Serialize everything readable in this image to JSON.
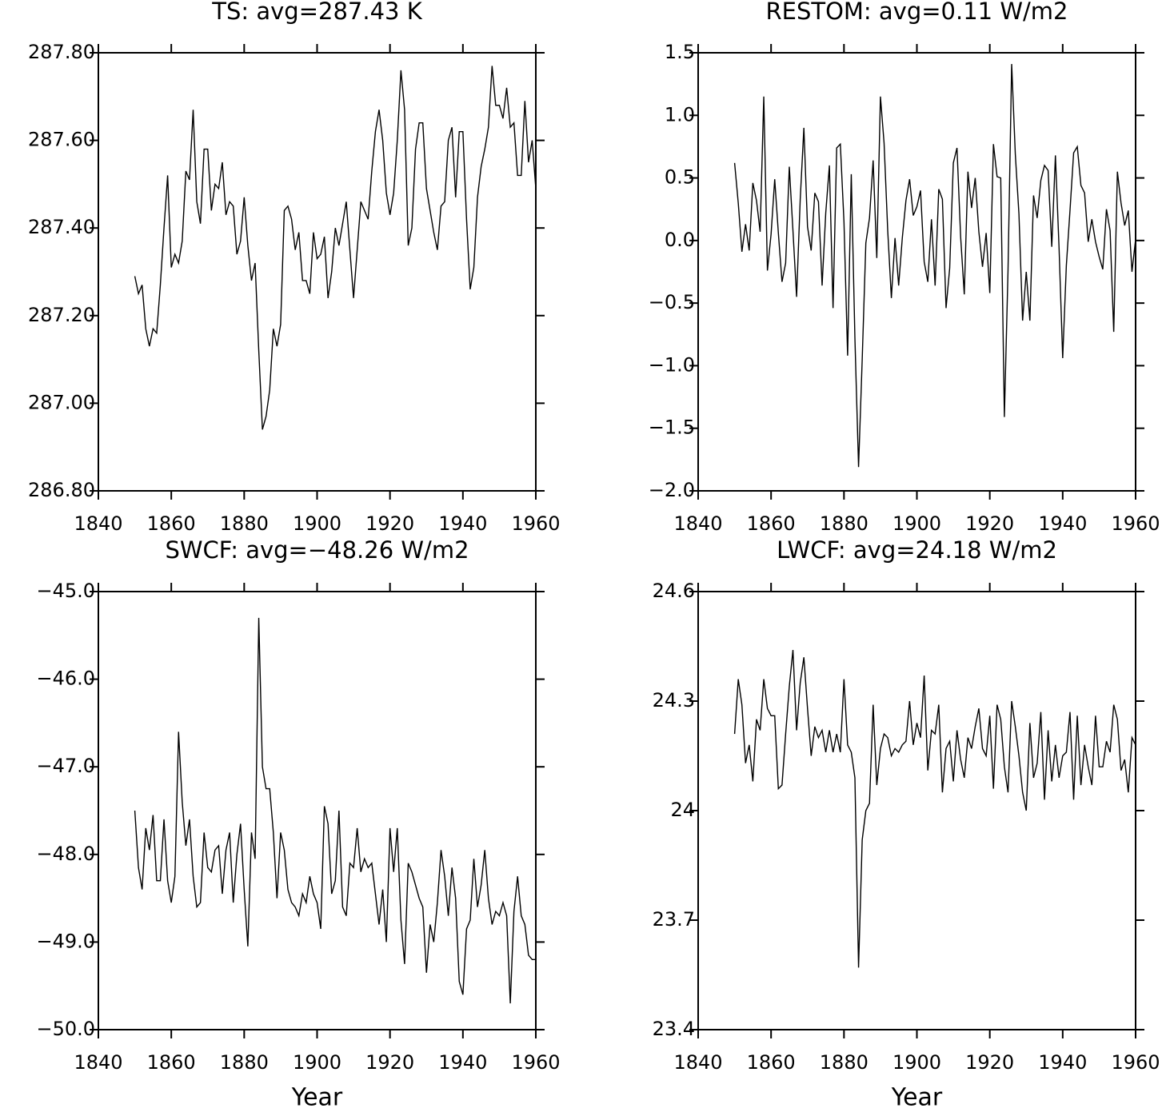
{
  "chart_data": [
    {
      "type": "line",
      "title": "TS: avg=287.43 K",
      "color": "#000000",
      "x": [
        1850,
        1851,
        1852,
        1853,
        1854,
        1855,
        1856,
        1857,
        1858,
        1859,
        1860,
        1861,
        1862,
        1863,
        1864,
        1865,
        1866,
        1867,
        1868,
        1869,
        1870,
        1871,
        1872,
        1873,
        1874,
        1875,
        1876,
        1877,
        1878,
        1879,
        1880,
        1881,
        1882,
        1883,
        1884,
        1885,
        1886,
        1887,
        1888,
        1889,
        1890,
        1891,
        1892,
        1893,
        1894,
        1895,
        1896,
        1897,
        1898,
        1899,
        1900,
        1901,
        1902,
        1903,
        1904,
        1905,
        1906,
        1907,
        1908,
        1909,
        1910,
        1911,
        1912,
        1913,
        1914,
        1915,
        1916,
        1917,
        1918,
        1919,
        1920,
        1921,
        1922,
        1923,
        1924,
        1925,
        1926,
        1927,
        1928,
        1929,
        1930,
        1931,
        1932,
        1933,
        1934,
        1935,
        1936,
        1937,
        1938,
        1939,
        1940,
        1941,
        1942,
        1943,
        1944,
        1945,
        1946,
        1947,
        1948,
        1949,
        1950,
        1951,
        1952,
        1953,
        1954,
        1955,
        1956,
        1957,
        1958,
        1959,
        1960
      ],
      "values": [
        287.29,
        287.25,
        287.27,
        287.17,
        287.13,
        287.17,
        287.16,
        287.27,
        287.4,
        287.52,
        287.31,
        287.34,
        287.32,
        287.37,
        287.53,
        287.51,
        287.67,
        287.46,
        287.41,
        287.58,
        287.58,
        287.44,
        287.5,
        287.49,
        287.55,
        287.43,
        287.46,
        287.45,
        287.34,
        287.37,
        287.47,
        287.36,
        287.28,
        287.32,
        287.12,
        286.94,
        286.97,
        287.03,
        287.17,
        287.13,
        287.18,
        287.44,
        287.45,
        287.42,
        287.35,
        287.39,
        287.28,
        287.28,
        287.25,
        287.39,
        287.33,
        287.34,
        287.38,
        287.24,
        287.3,
        287.4,
        287.36,
        287.41,
        287.46,
        287.35,
        287.24,
        287.35,
        287.46,
        287.44,
        287.42,
        287.53,
        287.62,
        287.67,
        287.6,
        287.48,
        287.43,
        287.48,
        287.6,
        287.76,
        287.67,
        287.36,
        287.4,
        287.58,
        287.64,
        287.64,
        287.49,
        287.44,
        287.39,
        287.35,
        287.45,
        287.46,
        287.6,
        287.63,
        287.47,
        287.62,
        287.62,
        287.42,
        287.26,
        287.31,
        287.47,
        287.54,
        287.58,
        287.63,
        287.77,
        287.68,
        287.68,
        287.65,
        287.72,
        287.63,
        287.64,
        287.52,
        287.52,
        287.69,
        287.55,
        287.6,
        287.49
      ],
      "xlim": [
        1840,
        1960
      ],
      "xticks": [
        1840,
        1860,
        1880,
        1900,
        1920,
        1940,
        1960
      ],
      "ylim": [
        286.8,
        287.8
      ],
      "yticks": [
        {
          "value": 286.8,
          "label": "286.80"
        },
        {
          "value": 287.0,
          "label": "287.00"
        },
        {
          "value": 287.2,
          "label": "287.20"
        },
        {
          "value": 287.4,
          "label": "287.40"
        },
        {
          "value": 287.6,
          "label": "287.60"
        },
        {
          "value": 287.8,
          "label": "287.80"
        }
      ]
    },
    {
      "type": "line",
      "title": "RESTOM: avg=0.11 W/m2",
      "color": "#000000",
      "x": [
        1850,
        1851,
        1852,
        1853,
        1854,
        1855,
        1856,
        1857,
        1858,
        1859,
        1860,
        1861,
        1862,
        1863,
        1864,
        1865,
        1866,
        1867,
        1868,
        1869,
        1870,
        1871,
        1872,
        1873,
        1874,
        1875,
        1876,
        1877,
        1878,
        1879,
        1880,
        1881,
        1882,
        1883,
        1884,
        1885,
        1886,
        1887,
        1888,
        1889,
        1890,
        1891,
        1892,
        1893,
        1894,
        1895,
        1896,
        1897,
        1898,
        1899,
        1900,
        1901,
        1902,
        1903,
        1904,
        1905,
        1906,
        1907,
        1908,
        1909,
        1910,
        1911,
        1912,
        1913,
        1914,
        1915,
        1916,
        1917,
        1918,
        1919,
        1920,
        1921,
        1922,
        1923,
        1924,
        1925,
        1926,
        1927,
        1928,
        1929,
        1930,
        1931,
        1932,
        1933,
        1934,
        1935,
        1936,
        1937,
        1938,
        1939,
        1940,
        1941,
        1942,
        1943,
        1944,
        1945,
        1946,
        1947,
        1948,
        1949,
        1950,
        1951,
        1952,
        1953,
        1954,
        1955,
        1956,
        1957,
        1958,
        1959,
        1960
      ],
      "values": [
        0.62,
        0.3,
        -0.09,
        0.13,
        -0.08,
        0.46,
        0.32,
        0.07,
        1.15,
        -0.24,
        0.05,
        0.49,
        0.06,
        -0.33,
        -0.18,
        0.59,
        0.08,
        -0.45,
        0.33,
        0.9,
        0.11,
        -0.08,
        0.38,
        0.31,
        -0.36,
        0.22,
        0.6,
        -0.54,
        0.74,
        0.77,
        0.15,
        -0.92,
        0.53,
        -0.78,
        -1.81,
        -0.95,
        -0.02,
        0.18,
        0.64,
        -0.14,
        1.15,
        0.78,
        0.08,
        -0.46,
        0.02,
        -0.36,
        0.02,
        0.32,
        0.49,
        0.2,
        0.27,
        0.4,
        -0.17,
        -0.33,
        0.17,
        -0.36,
        0.41,
        0.33,
        -0.54,
        -0.22,
        0.62,
        0.74,
        0.03,
        -0.43,
        0.55,
        0.26,
        0.5,
        0.07,
        -0.21,
        0.06,
        -0.42,
        0.77,
        0.51,
        0.5,
        -1.41,
        -0.24,
        1.41,
        0.69,
        0.21,
        -0.64,
        -0.25,
        -0.64,
        0.36,
        0.18,
        0.48,
        0.6,
        0.56,
        -0.05,
        0.68,
        -0.06,
        -0.94,
        -0.2,
        0.24,
        0.7,
        0.75,
        0.44,
        0.38,
        -0.01,
        0.17,
        -0.01,
        -0.13,
        -0.23,
        0.25,
        0.08,
        -0.73,
        0.55,
        0.3,
        0.12,
        0.24,
        -0.25,
        0.01
      ],
      "xlim": [
        1840,
        1960
      ],
      "xticks": [
        1840,
        1860,
        1880,
        1900,
        1920,
        1940,
        1960
      ],
      "ylim": [
        -2.0,
        1.5
      ],
      "yticks": [
        {
          "value": -2.0,
          "label": "−2.0"
        },
        {
          "value": -1.5,
          "label": "−1.5"
        },
        {
          "value": -1.0,
          "label": "−1.0"
        },
        {
          "value": -0.5,
          "label": "−0.5"
        },
        {
          "value": 0.0,
          "label": "0.0"
        },
        {
          "value": 0.5,
          "label": "0.5"
        },
        {
          "value": 1.0,
          "label": "1.0"
        },
        1.5
      ]
    },
    {
      "type": "line",
      "title": "SWCF: avg=−48.26 W/m2",
      "x_label": "Year",
      "color": "#000000",
      "x": [
        1850,
        1851,
        1852,
        1853,
        1854,
        1855,
        1856,
        1857,
        1858,
        1859,
        1860,
        1861,
        1862,
        1863,
        1864,
        1865,
        1866,
        1867,
        1868,
        1869,
        1870,
        1871,
        1872,
        1873,
        1874,
        1875,
        1876,
        1877,
        1878,
        1879,
        1880,
        1881,
        1882,
        1883,
        1884,
        1885,
        1886,
        1887,
        1888,
        1889,
        1890,
        1891,
        1892,
        1893,
        1894,
        1895,
        1896,
        1897,
        1898,
        1899,
        1900,
        1901,
        1902,
        1903,
        1904,
        1905,
        1906,
        1907,
        1908,
        1909,
        1910,
        1911,
        1912,
        1913,
        1914,
        1915,
        1916,
        1917,
        1918,
        1919,
        1920,
        1921,
        1922,
        1923,
        1924,
        1925,
        1926,
        1927,
        1928,
        1929,
        1930,
        1931,
        1932,
        1933,
        1934,
        1935,
        1936,
        1937,
        1938,
        1939,
        1940,
        1941,
        1942,
        1943,
        1944,
        1945,
        1946,
        1947,
        1948,
        1949,
        1950,
        1951,
        1952,
        1953,
        1954,
        1955,
        1956,
        1957,
        1958,
        1959,
        1960
      ],
      "values": [
        -47.5,
        -48.15,
        -48.4,
        -47.7,
        -47.95,
        -47.55,
        -48.3,
        -48.3,
        -47.6,
        -48.3,
        -48.55,
        -48.25,
        -46.6,
        -47.4,
        -47.9,
        -47.6,
        -48.25,
        -48.6,
        -48.55,
        -47.75,
        -48.15,
        -48.2,
        -47.95,
        -47.9,
        -48.45,
        -47.95,
        -47.75,
        -48.55,
        -48.0,
        -47.65,
        -48.4,
        -49.05,
        -47.75,
        -48.05,
        -45.3,
        -47.0,
        -47.25,
        -47.25,
        -47.75,
        -48.5,
        -47.75,
        -47.95,
        -48.4,
        -48.55,
        -48.6,
        -48.7,
        -48.45,
        -48.55,
        -48.25,
        -48.45,
        -48.55,
        -48.85,
        -47.45,
        -47.65,
        -48.45,
        -48.3,
        -47.5,
        -48.6,
        -48.7,
        -48.1,
        -48.15,
        -47.7,
        -48.2,
        -48.05,
        -48.15,
        -48.1,
        -48.45,
        -48.8,
        -48.4,
        -49.0,
        -47.7,
        -48.2,
        -47.7,
        -48.75,
        -49.25,
        -48.1,
        -48.2,
        -48.35,
        -48.5,
        -48.6,
        -49.35,
        -48.8,
        -49.0,
        -48.55,
        -47.95,
        -48.25,
        -48.7,
        -48.15,
        -48.5,
        -49.45,
        -49.6,
        -48.85,
        -48.75,
        -48.05,
        -48.6,
        -48.35,
        -47.95,
        -48.5,
        -48.8,
        -48.65,
        -48.7,
        -48.55,
        -48.7,
        -49.7,
        -48.65,
        -48.25,
        -48.7,
        -48.8,
        -49.15,
        -49.2,
        -49.2
      ],
      "xlim": [
        1840,
        1960
      ],
      "xticks": [
        1840,
        1860,
        1880,
        1900,
        1920,
        1940,
        1960
      ],
      "ylim": [
        -50.0,
        -45.0
      ],
      "yticks": [
        {
          "value": -50.0,
          "label": "−50.0"
        },
        {
          "value": -49.0,
          "label": "−49.0"
        },
        {
          "value": -48.0,
          "label": "−48.0"
        },
        {
          "value": -47.0,
          "label": "−47.0"
        },
        {
          "value": -46.0,
          "label": "−46.0"
        },
        {
          "value": -45.0,
          "label": "−45.0"
        }
      ]
    },
    {
      "type": "line",
      "title": "LWCF: avg=24.18 W/m2",
      "x_label": "Year",
      "color": "#000000",
      "x": [
        1850,
        1851,
        1852,
        1853,
        1854,
        1855,
        1856,
        1857,
        1858,
        1859,
        1860,
        1861,
        1862,
        1863,
        1864,
        1865,
        1866,
        1867,
        1868,
        1869,
        1870,
        1871,
        1872,
        1873,
        1874,
        1875,
        1876,
        1877,
        1878,
        1879,
        1880,
        1881,
        1882,
        1883,
        1884,
        1885,
        1886,
        1887,
        1888,
        1889,
        1890,
        1891,
        1892,
        1893,
        1894,
        1895,
        1896,
        1897,
        1898,
        1899,
        1900,
        1901,
        1902,
        1903,
        1904,
        1905,
        1906,
        1907,
        1908,
        1909,
        1910,
        1911,
        1912,
        1913,
        1914,
        1915,
        1916,
        1917,
        1918,
        1919,
        1920,
        1921,
        1922,
        1923,
        1924,
        1925,
        1926,
        1927,
        1928,
        1929,
        1930,
        1931,
        1932,
        1933,
        1934,
        1935,
        1936,
        1937,
        1938,
        1939,
        1940,
        1941,
        1942,
        1943,
        1944,
        1945,
        1946,
        1947,
        1948,
        1949,
        1950,
        1951,
        1952,
        1953,
        1954,
        1955,
        1956,
        1957,
        1958,
        1959,
        1960
      ],
      "values": [
        24.21,
        24.36,
        24.29,
        24.13,
        24.18,
        24.08,
        24.25,
        24.22,
        24.36,
        24.28,
        24.26,
        24.26,
        24.06,
        24.07,
        24.21,
        24.34,
        24.44,
        24.22,
        24.35,
        24.42,
        24.28,
        24.15,
        24.23,
        24.2,
        24.22,
        24.16,
        24.22,
        24.16,
        24.21,
        24.16,
        24.36,
        24.18,
        24.16,
        24.09,
        23.57,
        23.92,
        24.0,
        24.02,
        24.29,
        24.07,
        24.17,
        24.21,
        24.2,
        24.15,
        24.17,
        24.16,
        24.18,
        24.19,
        24.3,
        24.18,
        24.24,
        24.2,
        24.37,
        24.11,
        24.22,
        24.21,
        24.29,
        24.05,
        24.17,
        24.19,
        24.08,
        24.22,
        24.14,
        24.09,
        24.2,
        24.17,
        24.23,
        24.28,
        24.17,
        24.15,
        24.26,
        24.06,
        24.29,
        24.25,
        24.12,
        24.05,
        24.3,
        24.23,
        24.15,
        24.05,
        24.0,
        24.24,
        24.09,
        24.13,
        24.27,
        24.03,
        24.22,
        24.08,
        24.18,
        24.09,
        24.15,
        24.16,
        24.27,
        24.03,
        24.26,
        24.07,
        24.18,
        24.12,
        24.07,
        24.26,
        24.12,
        24.12,
        24.19,
        24.16,
        24.29,
        24.25,
        24.11,
        24.14,
        24.05,
        24.2,
        24.18
      ],
      "xlim": [
        1840,
        1960
      ],
      "xticks": [
        1840,
        1860,
        1880,
        1900,
        1920,
        1940,
        1960
      ],
      "ylim": [
        23.4,
        24.6
      ],
      "yticks": [
        23.4,
        23.7,
        24.0,
        24.3,
        24.6
      ]
    }
  ]
}
